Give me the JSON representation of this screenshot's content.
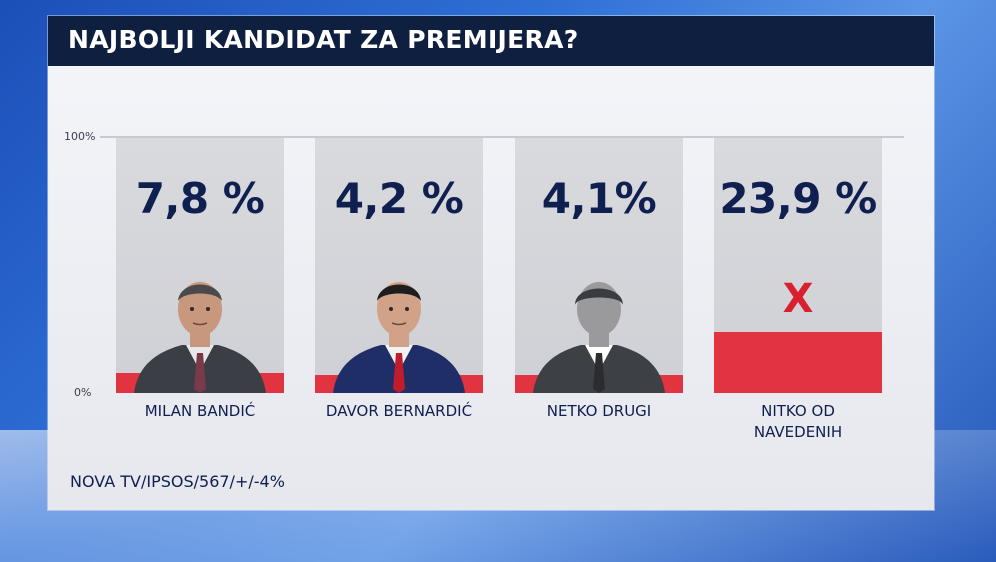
{
  "title": "NAJBOLJI KANDIDAT ZA PREMIJERA?",
  "source": "NOVA TV/IPSOS/567/+/-4%",
  "colors": {
    "bar": "#e23341",
    "title_bg": "#0f1f3f",
    "text": "#0f1f4f",
    "x_mark": "#d8202f"
  },
  "chart_data": {
    "type": "bar",
    "title": "NAJBOLJI KANDIDAT ZA PREMIJERA?",
    "categories": [
      "MILAN BANDIĆ",
      "DAVOR BERNARDIĆ",
      "NETKO DRUGI",
      "NITKO OD NAVEDENIH"
    ],
    "values": [
      7.8,
      4.2,
      4.1,
      23.9
    ],
    "value_labels": [
      "7,8 %",
      "4,2 %",
      "4,1%",
      "23,9 %"
    ],
    "ylim": [
      0,
      100
    ],
    "yticks": [
      "0%",
      "100%"
    ],
    "grid": false,
    "icons": [
      "person-photo-icon",
      "person-photo-icon",
      "anonymous-person-icon",
      "x-mark-icon"
    ],
    "x_mark": "X"
  }
}
